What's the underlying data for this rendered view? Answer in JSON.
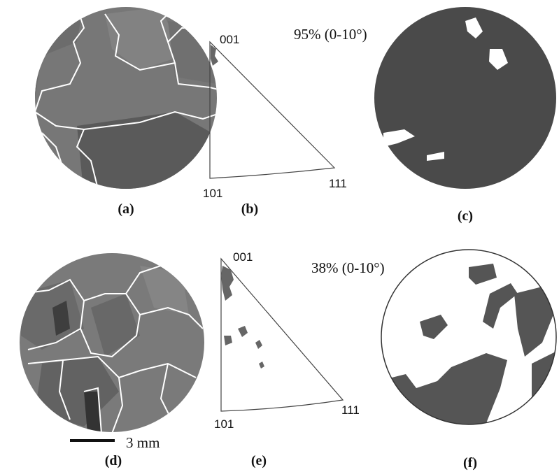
{
  "panels": [
    "(a)",
    "(b)",
    "(c)",
    "(d)",
    "(e)",
    "(f)"
  ],
  "triangles": [
    {
      "top": "001",
      "left": "101",
      "right": "111"
    },
    {
      "top": "001",
      "left": "101",
      "right": "111"
    }
  ],
  "fractions": [
    "95% (0-10°)",
    "38% (0-10°)"
  ],
  "scale_bar": "3 mm"
}
